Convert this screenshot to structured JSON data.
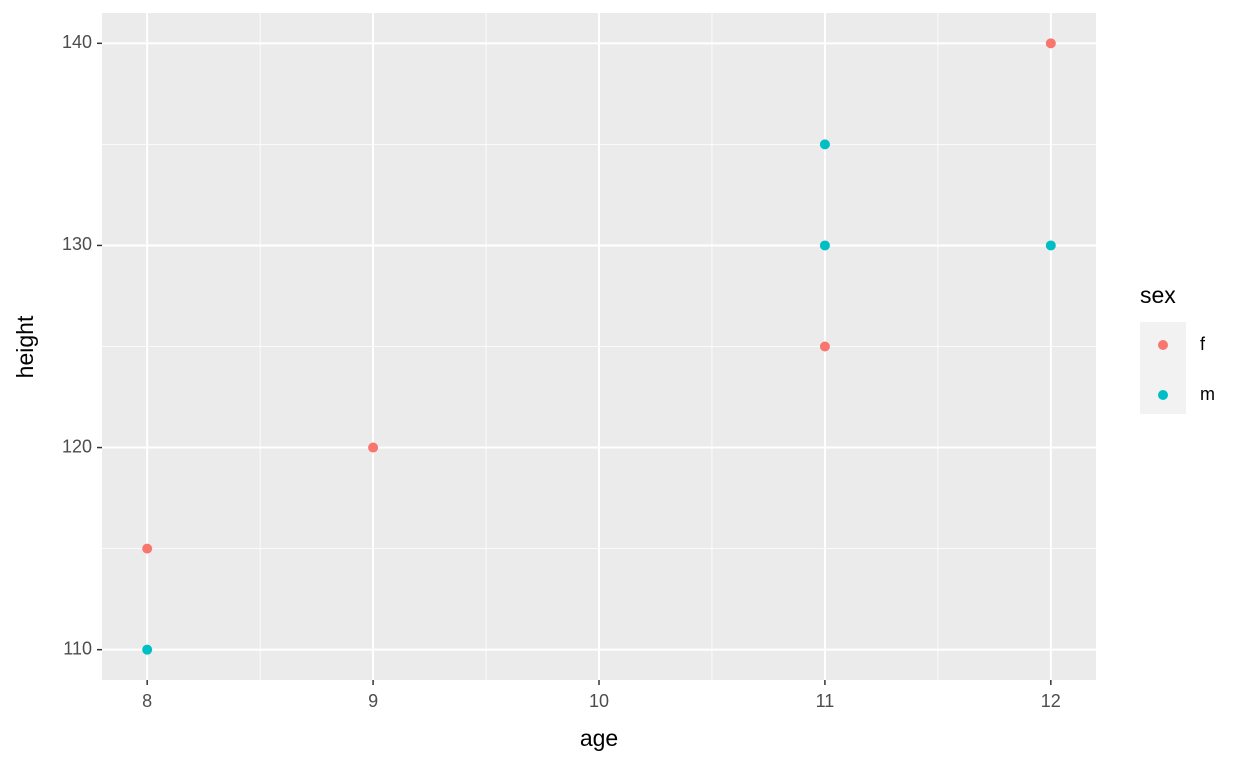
{
  "chart_data": {
    "type": "scatter",
    "x_label": "age",
    "y_label": "height",
    "legend_title": "sex",
    "series": [
      {
        "name": "f",
        "color": "#F8766D",
        "x": [
          8,
          9,
          11,
          12
        ],
        "values": [
          115,
          120,
          125,
          140
        ]
      },
      {
        "name": "m",
        "color": "#00BFC4",
        "x": [
          8,
          11,
          11,
          12
        ],
        "values": [
          110,
          130,
          135,
          130
        ]
      }
    ],
    "xlim": [
      7.8,
      12.2
    ],
    "xticks": [
      8,
      9,
      10,
      11,
      12
    ],
    "ylim": [
      108.5,
      141.5
    ],
    "yticks": [
      110,
      120,
      130,
      140
    ],
    "grid": true,
    "legend": "right"
  }
}
